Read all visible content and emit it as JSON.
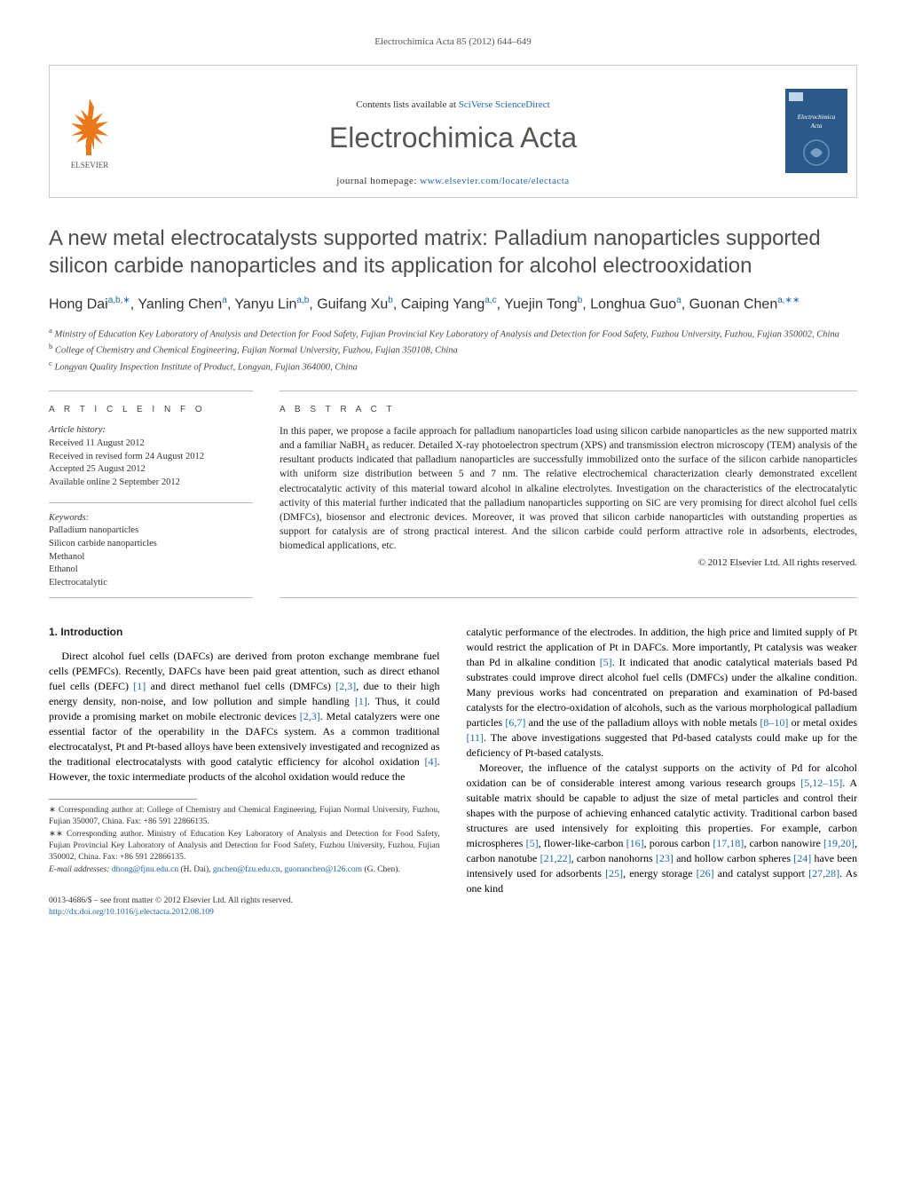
{
  "citation": "Electrochimica Acta 85 (2012) 644–649",
  "header": {
    "contents_prefix": "Contents lists available at ",
    "contents_link": "SciVerse ScienceDirect",
    "journal": "Electrochimica Acta",
    "homepage_prefix": "journal homepage: ",
    "homepage_link": "www.elsevier.com/locate/electacta",
    "elsevier_tree_color": "#e9781b",
    "elsevier_text_color": "#53524f",
    "cover_bg": "#2b5a8a",
    "cover_badge": "#bdd7e8"
  },
  "title": "A new metal electrocatalysts supported matrix: Palladium nanoparticles supported silicon carbide nanoparticles and its application for alcohol electrooxidation",
  "authors_html": "Hong Dai{SUP:a,b,∗}, Yanling Chen{SUP:a}, Yanyu Lin{SUP:a,b}, Guifang Xu{SUP:b}, Caiping Yang{SUP:a,c}, Yuejin Tong{SUP:b}, Longhua Guo{SUP:a}, Guonan Chen{SUP:a,∗∗}",
  "affiliations": [
    {
      "sup": "a",
      "text": "Ministry of Education Key Laboratory of Analysis and Detection for Food Safety, Fujian Provincial Key Laboratory of Analysis and Detection for Food Safety, Fuzhou University, Fuzhou, Fujian 350002, China"
    },
    {
      "sup": "b",
      "text": "College of Chemistry and Chemical Engineering, Fujian Normal University, Fuzhou, Fujian 350108, China"
    },
    {
      "sup": "c",
      "text": "Longyan Quality Inspection Institute of Product, Longyan, Fujian 364000, China"
    }
  ],
  "article_info": {
    "heading": "a r t i c l e   i n f o",
    "history_label": "Article history:",
    "history": [
      "Received 11 August 2012",
      "Received in revised form 24 August 2012",
      "Accepted 25 August 2012",
      "Available online 2 September 2012"
    ],
    "keywords_label": "Keywords:",
    "keywords": [
      "Palladium nanoparticles",
      "Silicon carbide nanoparticles",
      "Methanol",
      "Ethanol",
      "Electrocatalytic"
    ]
  },
  "abstract": {
    "heading": "a b s t r a c t",
    "text": "In this paper, we propose a facile approach for palladium nanoparticles load using silicon carbide nanoparticles as the new supported matrix and a familiar NaBH₄ as reducer. Detailed X-ray photoelectron spectrum (XPS) and transmission electron microscopy (TEM) analysis of the resultant products indicated that palladium nanoparticles are successfully immobilized onto the surface of the silicon carbide nanoparticles with uniform size distribution between 5 and 7 nm. The relative electrochemical characterization clearly demonstrated excellent electrocatalytic activity of this material toward alcohol in alkaline electrolytes. Investigation on the characteristics of the electrocatalytic activity of this material further indicated that the palladium nanoparticles supporting on SiC are very promising for direct alcohol fuel cells (DMFCs), biosensor and electronic devices. Moreover, it was proved that silicon carbide nanoparticles with outstanding properties as support for catalysis are of strong practical interest. And the silicon carbide could perform attractive role in adsorbents, electrodes, biomedical applications, etc.",
    "copyright": "© 2012 Elsevier Ltd. All rights reserved."
  },
  "body": {
    "section_heading": "1. Introduction",
    "left_col": "Direct alcohol fuel cells (DAFCs) are derived from proton exchange membrane fuel cells (PEMFCs). Recently, DAFCs have been paid great attention, such as direct ethanol fuel cells (DEFC) {REF:[1]} and direct methanol fuel cells (DMFCs) {REF:[2,3]}, due to their high energy density, non-noise, and low pollution and simple handling {REF:[1]}. Thus, it could provide a promising market on mobile electronic devices {REF:[2,3]}. Metal catalyzers were one essential factor of the operability in the DAFCs system. As a common traditional electrocatalyst, Pt and Pt-based alloys have been extensively investigated and recognized as the traditional electrocatalysts with good catalytic efficiency for alcohol oxidation {REF:[4]}. However, the toxic intermediate products of the alcohol oxidation would reduce the",
    "right_col_p1": "catalytic performance of the electrodes. In addition, the high price and limited supply of Pt would restrict the application of Pt in DAFCs. More importantly, Pt catalysis was weaker than Pd in alkaline condition {REF:[5]}. It indicated that anodic catalytical materials based Pd substrates could improve direct alcohol fuel cells (DMFCs) under the alkaline condition. Many previous works had concentrated on preparation and examination of Pd-based catalysts for the electro-oxidation of alcohols, such as the various morphological palladium particles {REF:[6,7]} and the use of the palladium alloys with noble metals {REF:[8–10]} or metal oxides {REF:[11]}. The above investigations suggested that Pd-based catalysts could make up for the deficiency of Pt-based catalysts.",
    "right_col_p2": "Moreover, the influence of the catalyst supports on the activity of Pd for alcohol oxidation can be of considerable interest among various research groups {REF:[5,12–15]}. A suitable matrix should be capable to adjust the size of metal particles and control their shapes with the purpose of achieving enhanced catalytic activity. Traditional carbon based structures are used intensively for exploiting this properties. For example, carbon microspheres {REF:[5]}, flower-like-carbon {REF:[16]}, porous carbon {REF:[17,18]}, carbon nanowire {REF:[19,20]}, carbon nanotube {REF:[21,22]}, carbon nanohorns {REF:[23]} and hollow carbon spheres {REF:[24]} have been intensively used for adsorbents {REF:[25]}, energy storage {REF:[26]} and catalyst support {REF:[27,28]}. As one kind"
  },
  "footnotes": {
    "corr1": "∗ Corresponding author at: College of Chemistry and Chemical Engineering, Fujian Normal University, Fuzhou, Fujian 350007, China. Fax: +86 591 22866135.",
    "corr2": "∗∗ Corresponding author. Ministry of Education Key Laboratory of Analysis and Detection for Food Safety, Fujian Provincial Key Laboratory of Analysis and Detection for Food Safety, Fuzhou University, Fuzhou, Fujian 350002, China. Fax: +86 591 22866135.",
    "email_label": "E-mail addresses: ",
    "email1": "dhong@fjnu.edu.cn",
    "email1_who": " (H. Dai), ",
    "email2": "gnchen@fzu.edu.cn",
    "email_sep": ", ",
    "email3": "guonanchen@126.com",
    "email3_who": " (G. Chen)."
  },
  "bottom": {
    "issn": "0013-4686/$ – see front matter © 2012 Elsevier Ltd. All rights reserved.",
    "doi": "http://dx.doi.org/10.1016/j.electacta.2012.08.109"
  },
  "colors": {
    "link": "#2068b0",
    "text": "#222222",
    "muted": "#555555",
    "heading_gray": "#4d4d4d"
  }
}
